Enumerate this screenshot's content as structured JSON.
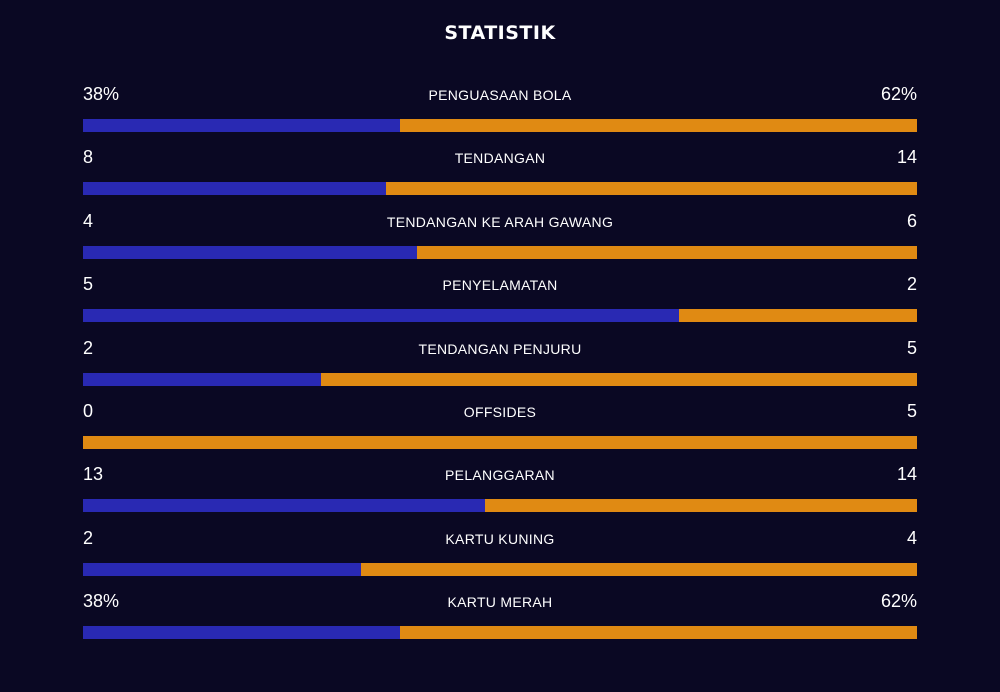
{
  "title": "STATISTIK",
  "colors": {
    "home": "#2929b3",
    "away": "#e08a13",
    "background": "#0a0823"
  },
  "stats": [
    {
      "label": "PENGUASAAN BOLA",
      "home": "38%",
      "away": "62%",
      "home_value": 38,
      "away_value": 62
    },
    {
      "label": "TENDANGAN",
      "home": "8",
      "away": "14",
      "home_value": 8,
      "away_value": 14
    },
    {
      "label": "TENDANGAN KE ARAH GAWANG",
      "home": "4",
      "away": "6",
      "home_value": 4,
      "away_value": 6
    },
    {
      "label": "PENYELAMATAN",
      "home": "5",
      "away": "2",
      "home_value": 5,
      "away_value": 2
    },
    {
      "label": "TENDANGAN PENJURU",
      "home": "2",
      "away": "5",
      "home_value": 2,
      "away_value": 5
    },
    {
      "label": "OFFSIDES",
      "home": "0",
      "away": "5",
      "home_value": 0,
      "away_value": 5
    },
    {
      "label": "PELANGGARAN",
      "home": "13",
      "away": "14",
      "home_value": 13,
      "away_value": 14
    },
    {
      "label": "KARTU KUNING",
      "home": "2",
      "away": "4",
      "home_value": 2,
      "away_value": 4
    },
    {
      "label": "KARTU MERAH",
      "home": "38%",
      "away": "62%",
      "home_value": 38,
      "away_value": 62
    }
  ]
}
